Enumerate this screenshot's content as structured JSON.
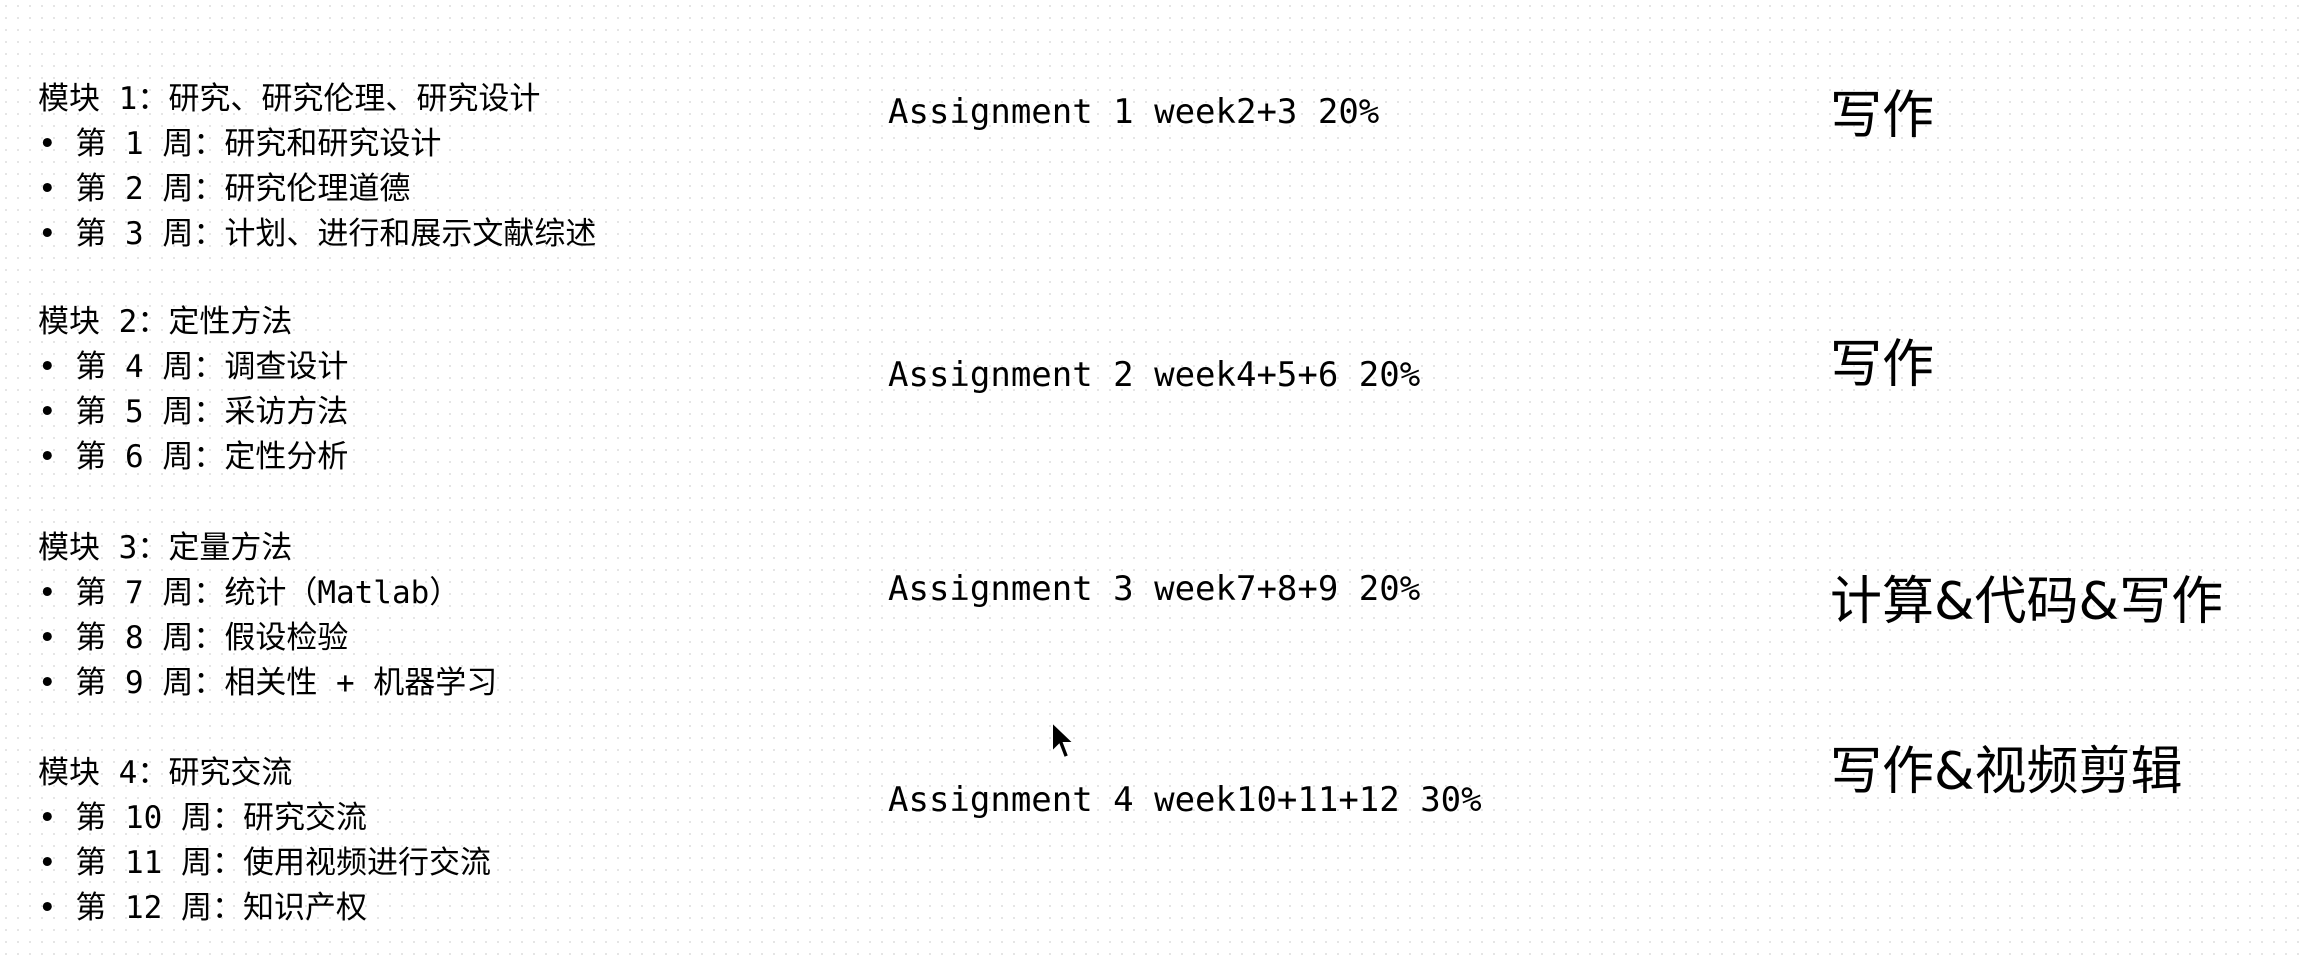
{
  "modules": [
    {
      "title": "模块 1：研究、研究伦理、研究设计",
      "weeks": [
        "• 第 1 周：研究和研究设计",
        "• 第 2 周：研究伦理道德",
        "• 第 3 周：计划、进行和展示文献综述"
      ]
    },
    {
      "title": "模块 2：定性方法",
      "weeks": [
        "• 第 4 周：调查设计",
        "• 第 5 周：采访方法",
        "• 第 6 周：定性分析"
      ]
    },
    {
      "title": "模块 3：定量方法",
      "weeks": [
        "• 第 7 周：统计（Matlab）",
        "• 第 8 周：假设检验",
        "• 第 9 周：相关性 + 机器学习"
      ]
    },
    {
      "title": "模块 4：研究交流",
      "weeks": [
        "• 第 10 周：研究交流",
        "• 第 11 周：使用视频进行交流",
        "• 第 12 周：知识产权"
      ]
    }
  ],
  "assignments": [
    "Assignment 1 week2+3 20%",
    "Assignment 2 week4+5+6 20%",
    "Assignment 3 week7+8+9 20%",
    "Assignment 4 week10+11+12 30%"
  ],
  "tags": [
    "写作",
    "写作",
    "计算&代码&写作",
    "写作&视频剪辑"
  ]
}
